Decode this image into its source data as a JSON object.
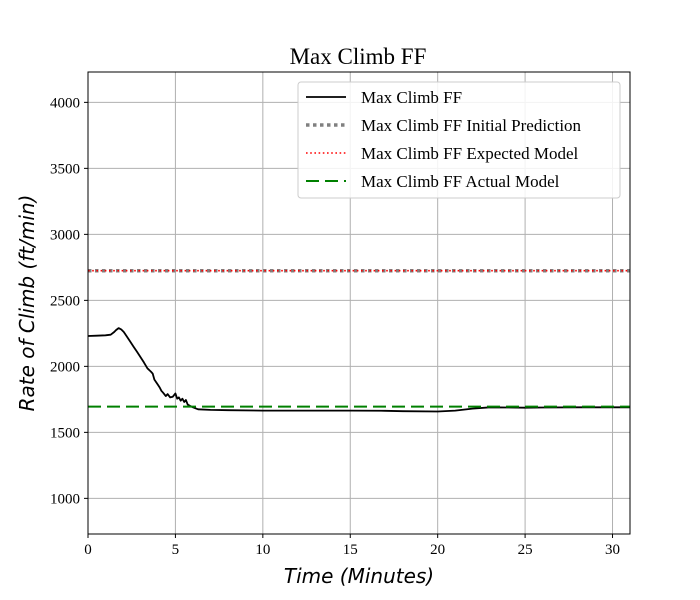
{
  "chart_data": {
    "type": "line",
    "title": "Max Climb FF",
    "xlabel": "Time (Minutes)",
    "ylabel": "Rate of Climb (ft/min)",
    "xlim": [
      0,
      31
    ],
    "ylim": [
      730,
      4230
    ],
    "xticks": [
      0,
      5,
      10,
      15,
      20,
      25,
      30
    ],
    "yticks": [
      1000,
      1500,
      2000,
      2500,
      3000,
      3500,
      4000
    ],
    "grid": true,
    "legend_position": "top-right",
    "series": [
      {
        "name": "Max Climb FF",
        "style": "solid",
        "color": "#000000",
        "x": [
          0,
          0.5,
          1,
          1.3,
          1.5,
          1.6,
          1.75,
          1.9,
          2.05,
          2.2,
          2.4,
          2.6,
          2.8,
          3.0,
          3.2,
          3.4,
          3.6,
          3.7,
          3.8,
          3.9,
          4.0,
          4.1,
          4.2,
          4.3,
          4.45,
          4.55,
          4.7,
          4.85,
          5.0,
          5.1,
          5.2,
          5.3,
          5.4,
          5.5,
          5.6,
          5.7,
          5.85,
          6.0,
          6.3,
          7,
          8,
          10,
          12,
          15,
          17,
          18,
          20,
          21,
          22,
          23,
          24,
          25,
          26,
          28,
          30,
          31
        ],
        "y": [
          2230,
          2232,
          2235,
          2240,
          2260,
          2275,
          2290,
          2280,
          2260,
          2230,
          2190,
          2150,
          2110,
          2070,
          2030,
          1985,
          1960,
          1945,
          1900,
          1880,
          1860,
          1840,
          1815,
          1800,
          1775,
          1790,
          1765,
          1770,
          1795,
          1755,
          1765,
          1740,
          1755,
          1730,
          1745,
          1710,
          1700,
          1690,
          1675,
          1670,
          1668,
          1665,
          1665,
          1665,
          1663,
          1660,
          1658,
          1665,
          1680,
          1690,
          1688,
          1687,
          1688,
          1690,
          1690,
          1690
        ]
      },
      {
        "name": "Max Climb FF Initial Prediction",
        "style": "dotted-thick",
        "color": "#808080",
        "x": [
          0,
          31
        ],
        "y": [
          2725,
          2725
        ]
      },
      {
        "name": "Max Climb FF Expected Model",
        "style": "dotted",
        "color": "#ff0000",
        "x": [
          0,
          31
        ],
        "y": [
          2725,
          2725
        ]
      },
      {
        "name": "Max Climb FF Actual Model",
        "style": "dashed",
        "color": "#008000",
        "x": [
          0,
          31
        ],
        "y": [
          1695,
          1695
        ]
      }
    ]
  }
}
